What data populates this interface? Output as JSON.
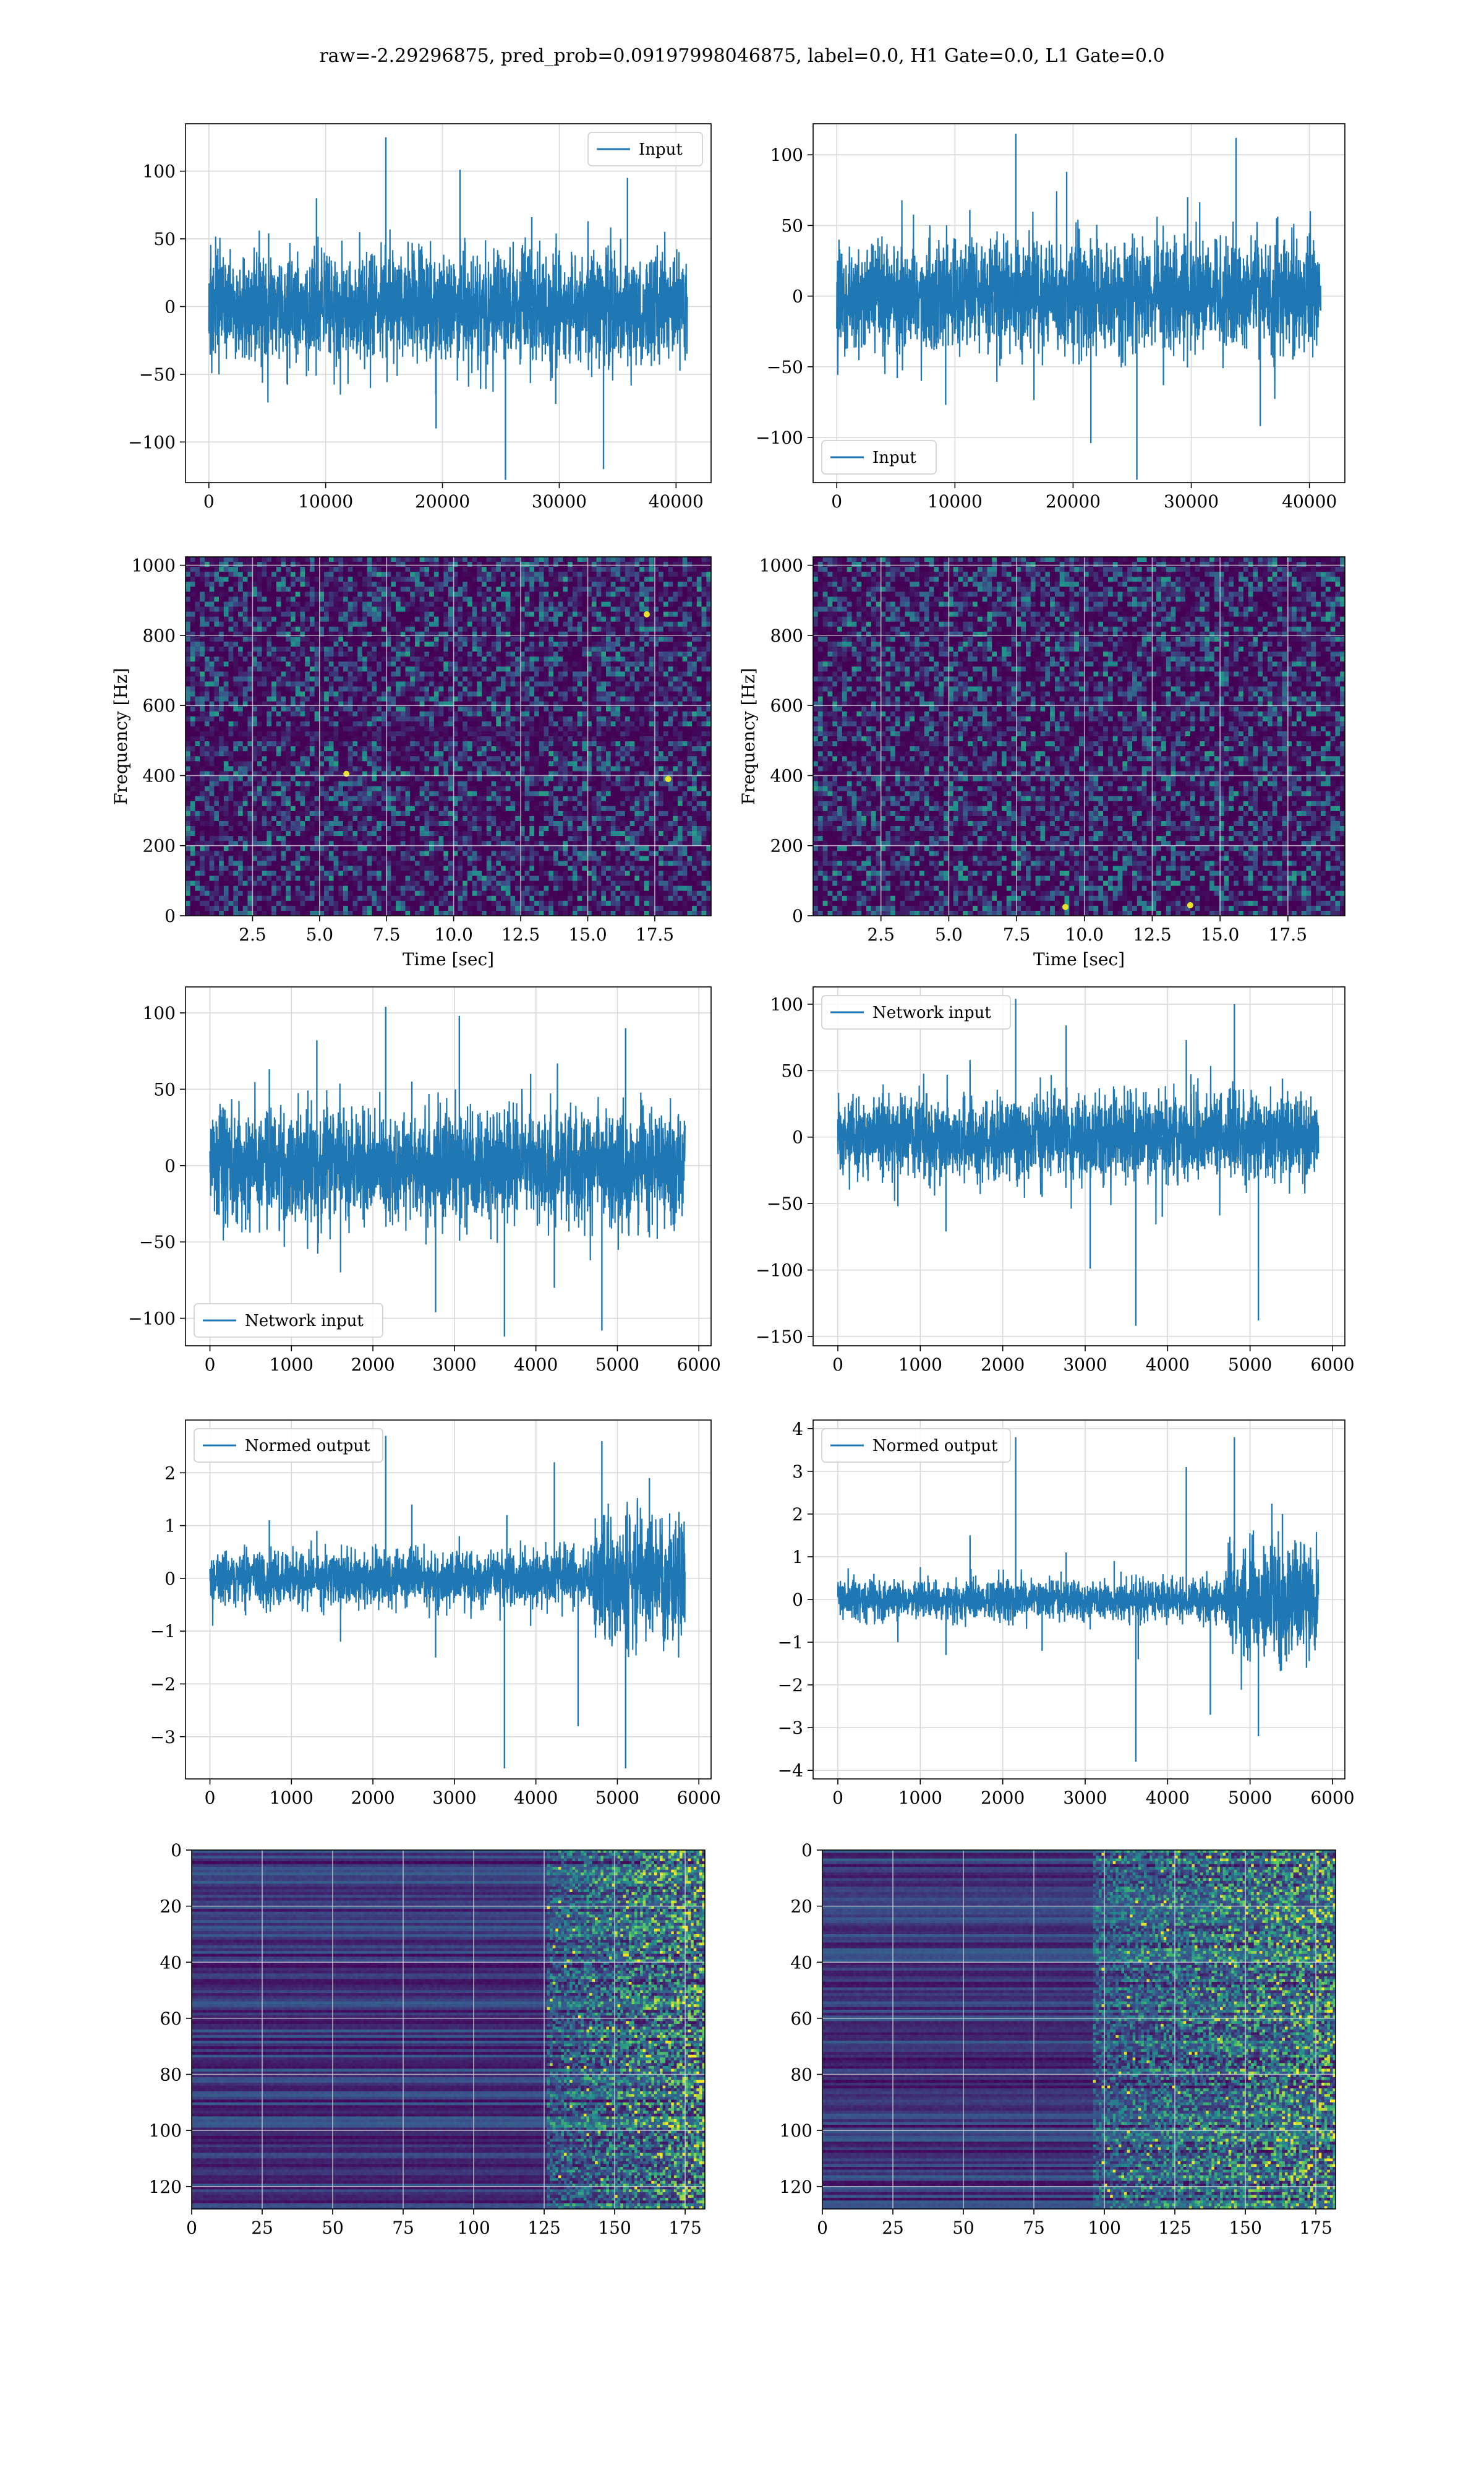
{
  "figure": {
    "title": "raw=-2.29296875, pred_prob=0.09197998046875, label=0.0, H1 Gate=0.0, L1 Gate=0.0"
  },
  "colors": {
    "series": "#1f77b4",
    "grid": "#d9d9d9",
    "viridis_dark": "#440154",
    "viridis_mid": "#21918c",
    "viridis_bright": "#fde725"
  },
  "chart_data": [
    {
      "id": "h1_input",
      "type": "line",
      "position_label": "row1-left",
      "title": "",
      "xlabel": "",
      "ylabel": "",
      "xlim": [
        -2000,
        43000
      ],
      "ylim": [
        -130,
        135
      ],
      "xticks": [
        0,
        10000,
        20000,
        30000,
        40000
      ],
      "yticks": [
        -100,
        -50,
        0,
        50,
        100
      ],
      "grid": true,
      "legend": "top-right",
      "series": [
        {
          "name": "Input",
          "x_range": [
            0,
            40960
          ],
          "band": [
            -45,
            45
          ],
          "peak_max": 125,
          "peak_min": -128,
          "values_sample": [
            12,
            -38,
            54,
            -21,
            80,
            -65,
            30,
            -9,
            47,
            -90,
            101,
            -33,
            22,
            66,
            -72,
            8,
            -120,
            95,
            -44,
            18
          ]
        }
      ]
    },
    {
      "id": "l1_input",
      "type": "line",
      "position_label": "row1-right",
      "title": "",
      "xlabel": "",
      "ylabel": "",
      "xlim": [
        -2000,
        43000
      ],
      "ylim": [
        -132,
        122
      ],
      "xticks": [
        0,
        10000,
        20000,
        30000,
        40000
      ],
      "yticks": [
        -100,
        -50,
        0,
        50,
        100
      ],
      "grid": true,
      "legend": "bottom-left",
      "series": [
        {
          "name": "Input",
          "x_range": [
            0,
            40960
          ],
          "band": [
            -42,
            42
          ],
          "peak_max": 115,
          "peak_min": -130,
          "values_sample": [
            -14,
            36,
            -58,
            20,
            -77,
            61,
            -27,
            11,
            -49,
            88,
            -104,
            31,
            -20,
            -63,
            70,
            -6,
            112,
            -92,
            40,
            -16
          ]
        }
      ]
    },
    {
      "id": "h1_spectrogram",
      "type": "heatmap",
      "position_label": "row2-left",
      "title": "",
      "xlabel": "Time [sec]",
      "ylabel": "Frequency [Hz]",
      "xlim": [
        0,
        19.6
      ],
      "ylim": [
        0,
        1024
      ],
      "xticks": [
        2.5,
        5.0,
        7.5,
        10.0,
        12.5,
        15.0,
        17.5
      ],
      "xtick_labels": [
        "2.5",
        "5.0",
        "7.5",
        "10.0",
        "12.5",
        "15.0",
        "17.5"
      ],
      "yticks": [
        0,
        200,
        400,
        600,
        800,
        1000
      ],
      "grid": true,
      "colormap": "viridis",
      "hot_spots": [
        {
          "t": 6.0,
          "f": 405
        },
        {
          "t": 18.0,
          "f": 390
        },
        {
          "t": 17.2,
          "f": 860
        }
      ]
    },
    {
      "id": "l1_spectrogram",
      "type": "heatmap",
      "position_label": "row2-right",
      "title": "",
      "xlabel": "Time [sec]",
      "ylabel": "Frequency [Hz]",
      "xlim": [
        0,
        19.6
      ],
      "ylim": [
        0,
        1024
      ],
      "xticks": [
        2.5,
        5.0,
        7.5,
        10.0,
        12.5,
        15.0,
        17.5
      ],
      "xtick_labels": [
        "2.5",
        "5.0",
        "7.5",
        "10.0",
        "12.5",
        "15.0",
        "17.5"
      ],
      "yticks": [
        0,
        200,
        400,
        600,
        800,
        1000
      ],
      "grid": true,
      "colormap": "viridis",
      "hot_spots": [
        {
          "t": 9.3,
          "f": 25
        },
        {
          "t": 13.9,
          "f": 30
        }
      ]
    },
    {
      "id": "h1_network_input",
      "type": "line",
      "position_label": "row3-left",
      "title": "",
      "xlabel": "",
      "ylabel": "",
      "xlim": [
        -300,
        6150
      ],
      "ylim": [
        -118,
        117
      ],
      "xticks": [
        0,
        1000,
        2000,
        3000,
        4000,
        5000,
        6000
      ],
      "yticks": [
        -100,
        -50,
        0,
        50,
        100
      ],
      "grid": true,
      "legend": "bottom-left",
      "series": [
        {
          "name": "Network input",
          "x_range": [
            0,
            5830
          ],
          "band": [
            -40,
            40
          ],
          "peak_max": 104,
          "peak_min": -112,
          "values_sample": [
            15,
            -42,
            63,
            -25,
            82,
            -70,
            36,
            -12,
            55,
            -96,
            98,
            -28,
            27,
            60,
            -80,
            10,
            -108,
            90,
            -47,
            22
          ]
        }
      ]
    },
    {
      "id": "l1_network_input",
      "type": "line",
      "position_label": "row3-right",
      "title": "",
      "xlabel": "",
      "ylabel": "",
      "xlim": [
        -300,
        6150
      ],
      "ylim": [
        -157,
        113
      ],
      "xticks": [
        0,
        1000,
        2000,
        3000,
        4000,
        5000,
        6000
      ],
      "yticks": [
        -150,
        -100,
        -50,
        0,
        50,
        100
      ],
      "grid": true,
      "legend": "top-left",
      "series": [
        {
          "name": "Network input",
          "x_range": [
            0,
            5830
          ],
          "band": [
            -35,
            35
          ],
          "peak_max": 104,
          "peak_min": -142,
          "values_sample": [
            -18,
            30,
            -52,
            24,
            -71,
            58,
            -33,
            14,
            -45,
            84,
            -99,
            36,
            -19,
            -60,
            73,
            -4,
            100,
            -138,
            44,
            -12
          ]
        }
      ]
    },
    {
      "id": "h1_normed_output",
      "type": "line",
      "position_label": "row4-left",
      "title": "",
      "xlabel": "",
      "ylabel": "",
      "xlim": [
        -300,
        6150
      ],
      "ylim": [
        -3.8,
        3.0
      ],
      "xticks": [
        0,
        1000,
        2000,
        3000,
        4000,
        5000,
        6000
      ],
      "yticks": [
        -3,
        -2,
        -1,
        0,
        1,
        2
      ],
      "grid": true,
      "legend": "top-left",
      "series": [
        {
          "name": "Normed output",
          "x_range": [
            0,
            5830
          ],
          "band": [
            -0.55,
            0.55
          ],
          "burst_start": 4700,
          "burst_band": [
            -1.3,
            1.3
          ],
          "peak_max": 2.7,
          "peak_min": -3.6,
          "values_sample": [
            0.3,
            -0.7,
            1.1,
            -0.4,
            0.9,
            -1.2,
            0.5,
            -0.2,
            1.4,
            -1.5,
            0.8,
            -0.6,
            1.2,
            -0.9,
            2.2,
            -2.8,
            2.6,
            -3.6,
            1.9,
            -1.1
          ]
        }
      ]
    },
    {
      "id": "l1_normed_output",
      "type": "line",
      "position_label": "row4-right",
      "title": "",
      "xlabel": "",
      "ylabel": "",
      "xlim": [
        -300,
        6150
      ],
      "ylim": [
        -4.2,
        4.2
      ],
      "xticks": [
        0,
        1000,
        2000,
        3000,
        4000,
        5000,
        6000
      ],
      "yticks": [
        -4,
        -3,
        -2,
        -1,
        0,
        1,
        2,
        3,
        4
      ],
      "grid": true,
      "legend": "top-left",
      "series": [
        {
          "name": "Normed output",
          "x_range": [
            0,
            5830
          ],
          "band": [
            -0.5,
            0.5
          ],
          "burst_start": 4700,
          "burst_band": [
            -1.5,
            1.5
          ],
          "peak_max": 3.8,
          "peak_min": -3.8,
          "values_sample": [
            -0.2,
            0.6,
            -1.0,
            0.4,
            -1.3,
            1.5,
            -0.5,
            0.3,
            -1.2,
            1.1,
            -0.7,
            0.9,
            -1.4,
            0.2,
            3.1,
            -2.7,
            3.8,
            -3.2,
            2.0,
            -1.6
          ]
        }
      ]
    },
    {
      "id": "h1_feature_map",
      "type": "heatmap",
      "position_label": "row5-left",
      "title": "",
      "xlabel": "",
      "ylabel": "",
      "xlim": [
        0,
        182
      ],
      "ylim": [
        128,
        0
      ],
      "xticks": [
        0,
        25,
        50,
        75,
        100,
        125,
        150,
        175
      ],
      "yticks": [
        0,
        20,
        40,
        60,
        80,
        100,
        120
      ],
      "grid": true,
      "colormap": "viridis",
      "activation_onset": 125
    },
    {
      "id": "l1_feature_map",
      "type": "heatmap",
      "position_label": "row5-right",
      "title": "",
      "xlabel": "",
      "ylabel": "",
      "xlim": [
        0,
        182
      ],
      "ylim": [
        128,
        0
      ],
      "xticks": [
        0,
        25,
        50,
        75,
        100,
        125,
        150,
        175
      ],
      "yticks": [
        0,
        20,
        40,
        60,
        80,
        100,
        120
      ],
      "grid": true,
      "colormap": "viridis",
      "activation_onset": 95
    }
  ]
}
